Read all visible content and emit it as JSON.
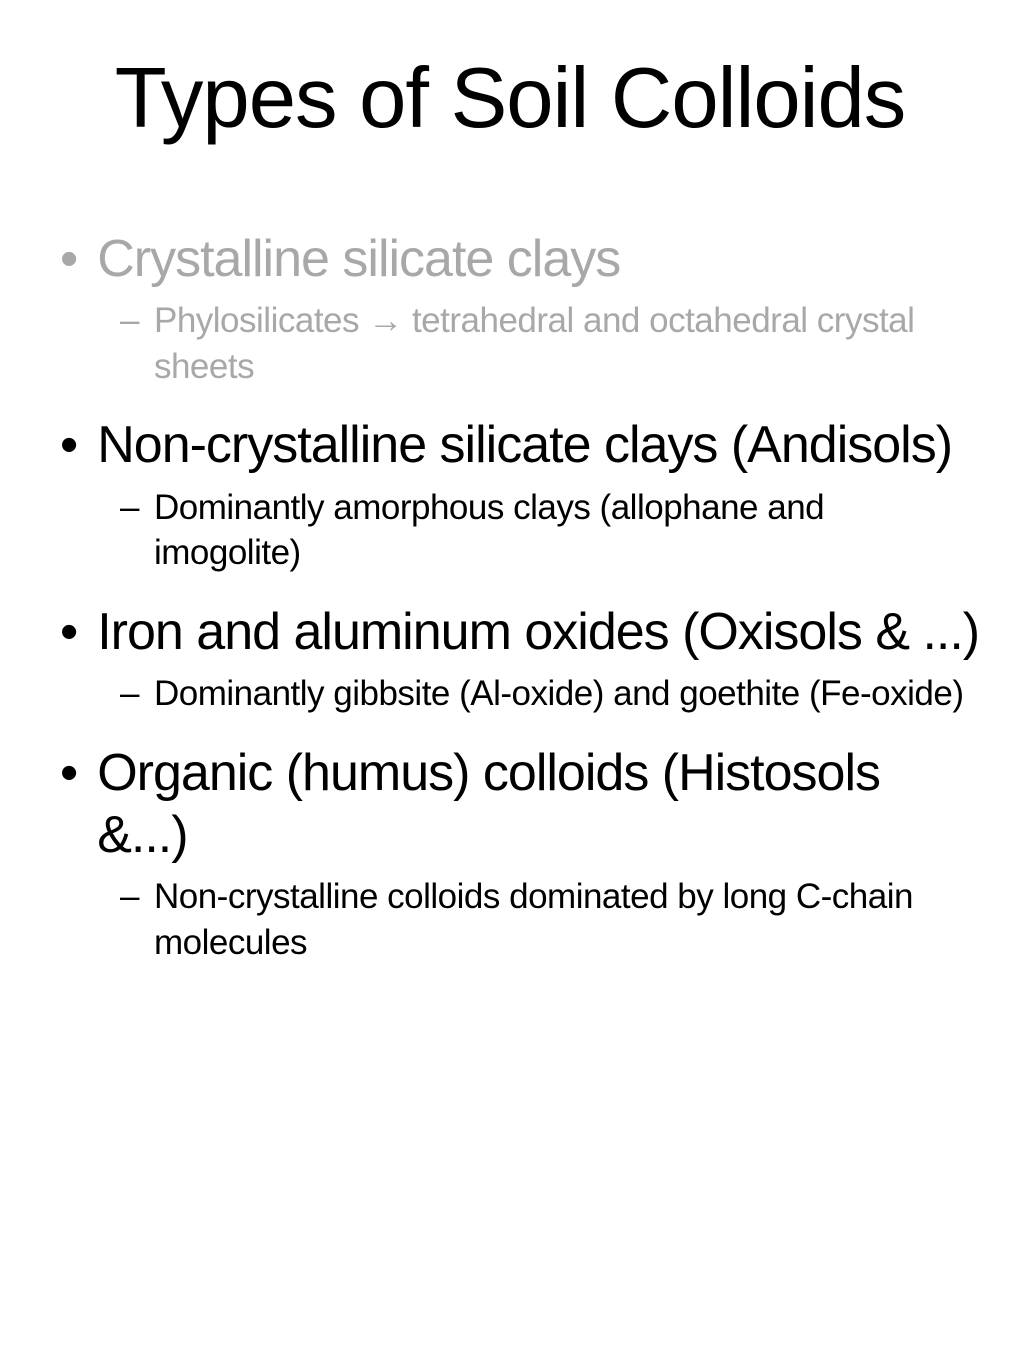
{
  "slide": {
    "title": "Types of Soil Colloids",
    "title_fontsize": 85,
    "title_color": "#000000",
    "background_color": "#ffffff",
    "dimmed_color": "#a8a8a8",
    "normal_color": "#000000",
    "main_fontsize": 52,
    "sub_fontsize": 35,
    "bullets": [
      {
        "main": "Crystalline silicate clays",
        "sub": "Phylosilicates → tetrahedral and octahedral crystal sheets",
        "dimmed": true
      },
      {
        "main": "Non-crystalline silicate clays (Andisols)",
        "sub": "Dominantly amorphous clays (allophane and imogolite)",
        "dimmed": false
      },
      {
        "main": "Iron and aluminum oxides (Oxisols & ...)",
        "sub": "Dominantly gibbsite (Al-oxide) and goethite (Fe-oxide)",
        "dimmed": false
      },
      {
        "main": "Organic (humus) colloids (Histosols &...)",
        "sub": "Non-crystalline colloids dominated by long C-chain molecules",
        "dimmed": false
      }
    ]
  }
}
